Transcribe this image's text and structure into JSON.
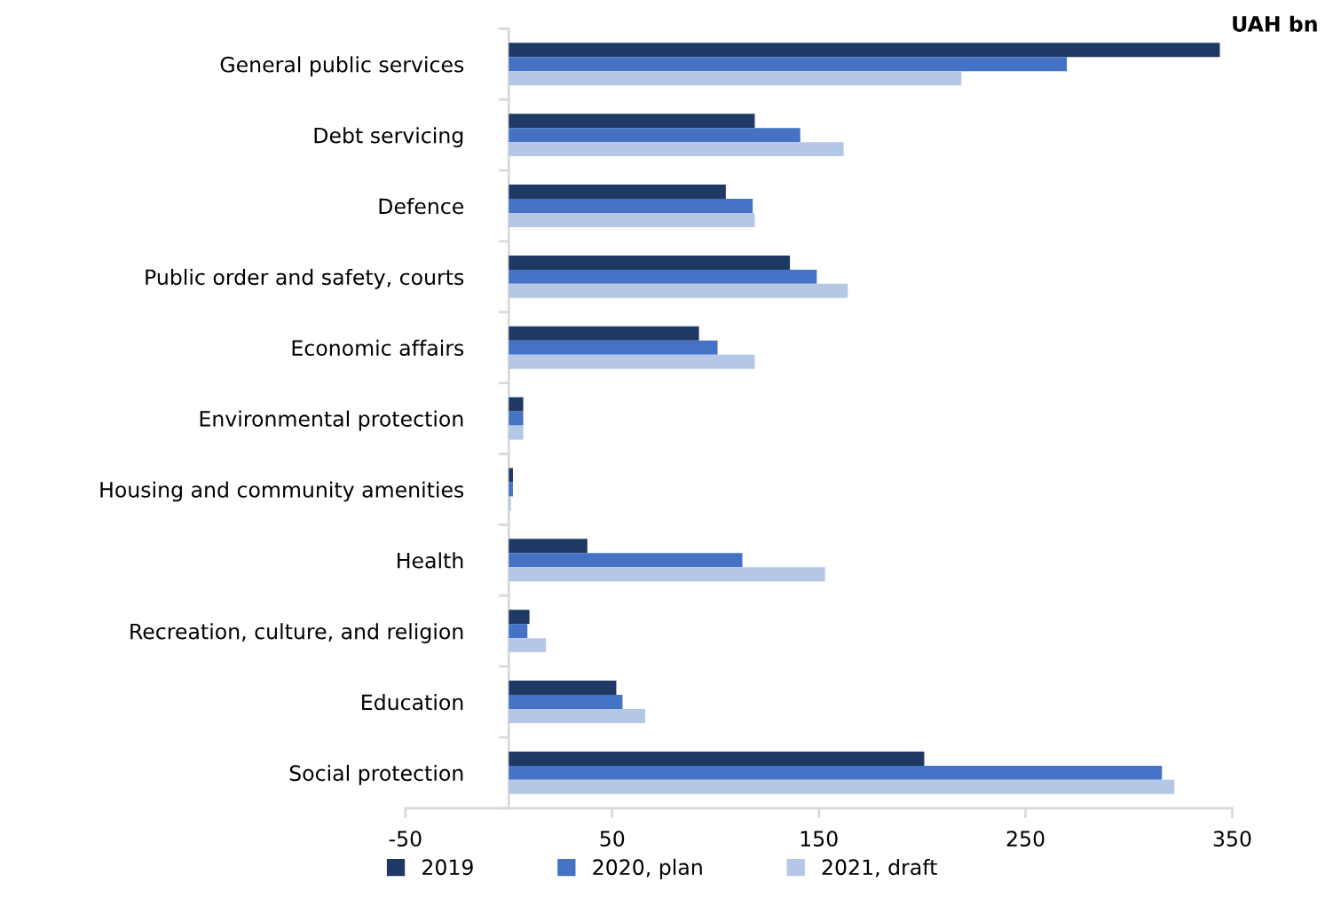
{
  "chart_data": {
    "type": "bar",
    "orientation": "horizontal",
    "annotations": [
      "UAH bn"
    ],
    "categories": [
      "General public services",
      "Debt servicing",
      "Defence",
      "Public order and safety, courts",
      "Economic affairs",
      "Environmental protection",
      "Housing and community amenities",
      "Health",
      "Recreation, culture, and religion",
      "Education",
      "Social protection"
    ],
    "series": [
      {
        "name": "2019",
        "color": "#1f3864",
        "values": [
          344,
          119,
          105,
          136,
          92,
          7,
          2,
          38,
          10,
          52,
          201
        ]
      },
      {
        "name": "2020, plan",
        "color": "#4472c4",
        "values": [
          270,
          141,
          118,
          149,
          101,
          7,
          2,
          113,
          9,
          55,
          316
        ]
      },
      {
        "name": "2021, draft",
        "color": "#b4c7e7",
        "values": [
          219,
          162,
          119,
          164,
          119,
          7,
          1,
          153,
          18,
          66,
          322
        ]
      }
    ],
    "xlim": [
      -50,
      350
    ],
    "xticks": [
      -50,
      50,
      150,
      250,
      350
    ],
    "grid": false,
    "legend": "bottom"
  }
}
